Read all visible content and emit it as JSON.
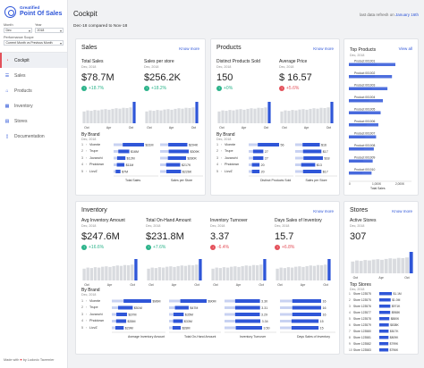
{
  "brand": {
    "top": "Greatified",
    "name": "Point Of Sales"
  },
  "filters": {
    "month_label": "Month",
    "month_value": "Dec",
    "year_label": "Year",
    "year_value": "2018",
    "period_label": "Performance Scope",
    "period_value": "Current Month vs Previous Month"
  },
  "nav": [
    {
      "label": "Cockpit",
      "icon": "gauge-icon",
      "glyph": "◔"
    },
    {
      "label": "Sales",
      "icon": "list-icon",
      "glyph": "☰"
    },
    {
      "label": "Products",
      "icon": "tag-icon",
      "glyph": "⌂"
    },
    {
      "label": "Inventory",
      "icon": "box-icon",
      "glyph": "▦"
    },
    {
      "label": "Stores",
      "icon": "store-icon",
      "glyph": "▤"
    },
    {
      "label": "Documentation",
      "icon": "doc-icon",
      "glyph": "▯"
    }
  ],
  "made_with": {
    "prefix": "Made with",
    "heart": "♥",
    "suffix": "by Ludovic Tavernier"
  },
  "header": {
    "title": "Cockpit",
    "refresh_prefix": "last data refresh on",
    "refresh_date": "January 16th",
    "subtitle": "Dec-18 compared to Nov-18"
  },
  "sales": {
    "title": "Sales",
    "know_more": "Know more",
    "kpis": [
      {
        "label": "Total Sales",
        "date": "Dec, 2018",
        "value": "$78.7M",
        "delta": "+18.7%",
        "dir": "up"
      },
      {
        "label": "Sales per store",
        "date": "Dec, 2018",
        "value": "$256.2K",
        "delta": "+18.2%",
        "dir": "up"
      }
    ],
    "by_brand": "By Brand",
    "by_brand_date": "Dec, 2018",
    "brands": [
      "Vicente",
      "Trupe",
      "Jovanchi",
      "Pholdown",
      "LivvZ"
    ],
    "total_values": [
      "$31M",
      "$16M",
      "$12M",
      "$11M",
      "$7M"
    ],
    "store_values": [
      "$294K",
      "$309K",
      "$280K",
      "$217K",
      "$226K"
    ],
    "cap_total": "Total Sales",
    "cap_store": "Sales per Store",
    "ticks": [
      "Oct",
      "Apr",
      "Oct"
    ]
  },
  "products": {
    "title": "Products",
    "know_more": "Know more",
    "kpis": [
      {
        "label": "Distinct Products Sold",
        "date": "Dec, 2018",
        "value": "150",
        "delta": "+0%",
        "dir": "up"
      },
      {
        "label": "Average Price",
        "date": "Dec, 2018",
        "value": "$ 16.57",
        "delta": "+5.6%",
        "dir": "down"
      }
    ],
    "by_brand": "By Brand",
    "by_brand_date": "Dec, 2018",
    "brands": [
      "Vicente",
      "Trupe",
      "Jovanchi",
      "Pholdown",
      "LivvZ"
    ],
    "distinct_values": [
      "56",
      "27",
      "27",
      "20",
      "20"
    ],
    "price_values": [
      "$16",
      "$17",
      "$18",
      "$13",
      "$17"
    ],
    "cap_distinct": "Distinct Products Sold",
    "cap_price": "Sales per Store",
    "ticks": [
      "Oct",
      "Apr",
      "Oct"
    ]
  },
  "top_products": {
    "title": "Top Products",
    "view_all": "View all",
    "date": "Dec, 2018",
    "items": [
      "Product 001001",
      "Product 001002",
      "Product 001003",
      "Product 001004",
      "Product 001005",
      "Product 001006",
      "Product 001007",
      "Product 001008",
      "Product 001009",
      "Product 001010"
    ],
    "values": [
      41,
      38,
      34,
      30,
      28,
      26,
      24,
      22,
      21,
      20
    ],
    "ticks": [
      "0",
      "1,000K",
      "2,000K"
    ],
    "cap": "Total Sales"
  },
  "inventory": {
    "title": "Inventory",
    "know_more": "Know more",
    "kpis": [
      {
        "label": "Avg Inventory Amount",
        "date": "Dec, 2018",
        "value": "$247.6M",
        "delta": "+16.6%",
        "dir": "up"
      },
      {
        "label": "Total On-Hand Amount",
        "date": "Dec, 2018",
        "value": "$231.8M",
        "delta": "+7.6%",
        "dir": "up"
      },
      {
        "label": "Inventory Turnover",
        "date": "Dec, 2018",
        "value": "3.37",
        "delta": "-6.4%",
        "dir": "down"
      },
      {
        "label": "Days Sales of Inventory",
        "date": "Dec, 2018",
        "value": "15.7",
        "delta": "+6.8%",
        "dir": "down"
      }
    ],
    "by_brand": "By Brand",
    "by_brand_date": "Dec, 2018",
    "brands": [
      "Vicente",
      "Trupe",
      "Jovanchi",
      "Pholdown",
      "LivvZ"
    ],
    "avg_values": [
      "$96M",
      "$51M",
      "$37M",
      "$35M",
      "$29M"
    ],
    "onhand_values": [
      "$90M",
      "$47M",
      "$35M",
      "$33M",
      "$28M"
    ],
    "turn_values": [
      "3.30",
      "3.31",
      "3.29",
      "3.34",
      "3.50"
    ],
    "dsi_values": [
      "16",
      "16",
      "16",
      "15",
      "15"
    ],
    "caps": [
      "Average Inventory Amount",
      "Total On-Hand Amount",
      "Inventory Turnover",
      "Days Sales of Inventory"
    ],
    "ticks": [
      "Oct",
      "Apr",
      "Oct"
    ]
  },
  "stores": {
    "title": "Stores",
    "know_more": "Know more",
    "kpi": {
      "label": "Active Stores",
      "date": "Dec, 2018",
      "value": "307"
    },
    "top_stores": "Top Stores",
    "top_date": "Dec, 2018",
    "items": [
      "Store 123575",
      "Store 123575",
      "Store 123576",
      "Store 123577",
      "Store 123578",
      "Store 123579",
      "Store 123580",
      "Store 123581",
      "Store 123582",
      "Store 123583"
    ],
    "values": [
      "$1.1M",
      "$1.0M",
      "$971K",
      "$958K",
      "$880K",
      "$838K",
      "$817K",
      "$809K",
      "$799K",
      "$796K"
    ]
  }
}
